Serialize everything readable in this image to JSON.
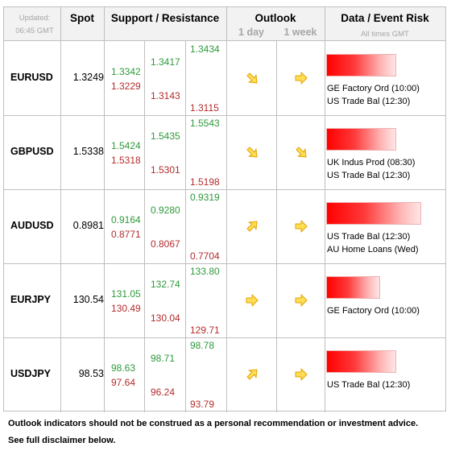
{
  "header": {
    "updated_label": "Updated:",
    "updated_time": "06:45 GMT",
    "spot": "Spot",
    "sr": "Support / Resistance",
    "outlook": "Outlook",
    "day": "1 day",
    "week": "1 week",
    "data": "Data / Event Risk",
    "times": "All times GMT"
  },
  "rows": [
    {
      "pair": "EURUSD",
      "spot": "1.3249",
      "s1r": "1.3342",
      "s1s": "1.3229",
      "s2r": "1.3417",
      "s2s": "1.3143",
      "s3r": "1.3434",
      "s3s": "1.3115",
      "day": "down-right-arrow-icon",
      "week": "right-arrow-icon",
      "risk": 0.62,
      "events": [
        "GE Factory Ord (10:00)",
        "US Trade Bal (12:30)"
      ]
    },
    {
      "pair": "GBPUSD",
      "spot": "1.5338",
      "s1r": "1.5424",
      "s1s": "1.5318",
      "s2r": "1.5435",
      "s2s": "1.5301",
      "s3r": "1.5543",
      "s3s": "1.5198",
      "day": "down-right-arrow-icon",
      "week": "down-right-arrow-icon",
      "risk": 0.62,
      "events": [
        "UK Indus Prod (08:30)",
        "US Trade Bal (12:30)"
      ]
    },
    {
      "pair": "AUDUSD",
      "spot": "0.8981",
      "s1r": "0.9164",
      "s1s": "0.8771",
      "s2r": "0.9280",
      "s2s": "0.8067",
      "s3r": "0.9319",
      "s3s": "0.7704",
      "day": "up-right-arrow-icon",
      "week": "right-arrow-icon",
      "risk": 0.84,
      "events": [
        "US Trade Bal (12:30)",
        "AU Home Loans (Wed)"
      ]
    },
    {
      "pair": "EURJPY",
      "spot": "130.54",
      "s1r": "131.05",
      "s1s": "130.49",
      "s2r": "132.74",
      "s2s": "130.04",
      "s3r": "133.80",
      "s3s": "129.71",
      "day": "right-arrow-icon",
      "week": "right-arrow-icon",
      "risk": 0.48,
      "events": [
        "GE Factory Ord (10:00)"
      ]
    },
    {
      "pair": "USDJPY",
      "spot": "98.53",
      "s1r": "98.63",
      "s1s": "97.64",
      "s2r": "98.71",
      "s2s": "96.24",
      "s3r": "98.78",
      "s3s": "93.79",
      "day": "up-right-arrow-icon",
      "week": "right-arrow-icon",
      "risk": 0.62,
      "events": [
        "US Trade Bal (12:30)"
      ]
    }
  ],
  "footer": {
    "line1": "Outlook indicators should not be construed as a personal recommendation or investment advice.",
    "line2": "See full disclaimer below."
  },
  "colors": {
    "resistance": "#2e9a3a",
    "support": "#b42c2c",
    "arrow_fill": "#ffdd55",
    "arrow_stroke": "#e0a400",
    "risk_bar": "#ff0000"
  }
}
